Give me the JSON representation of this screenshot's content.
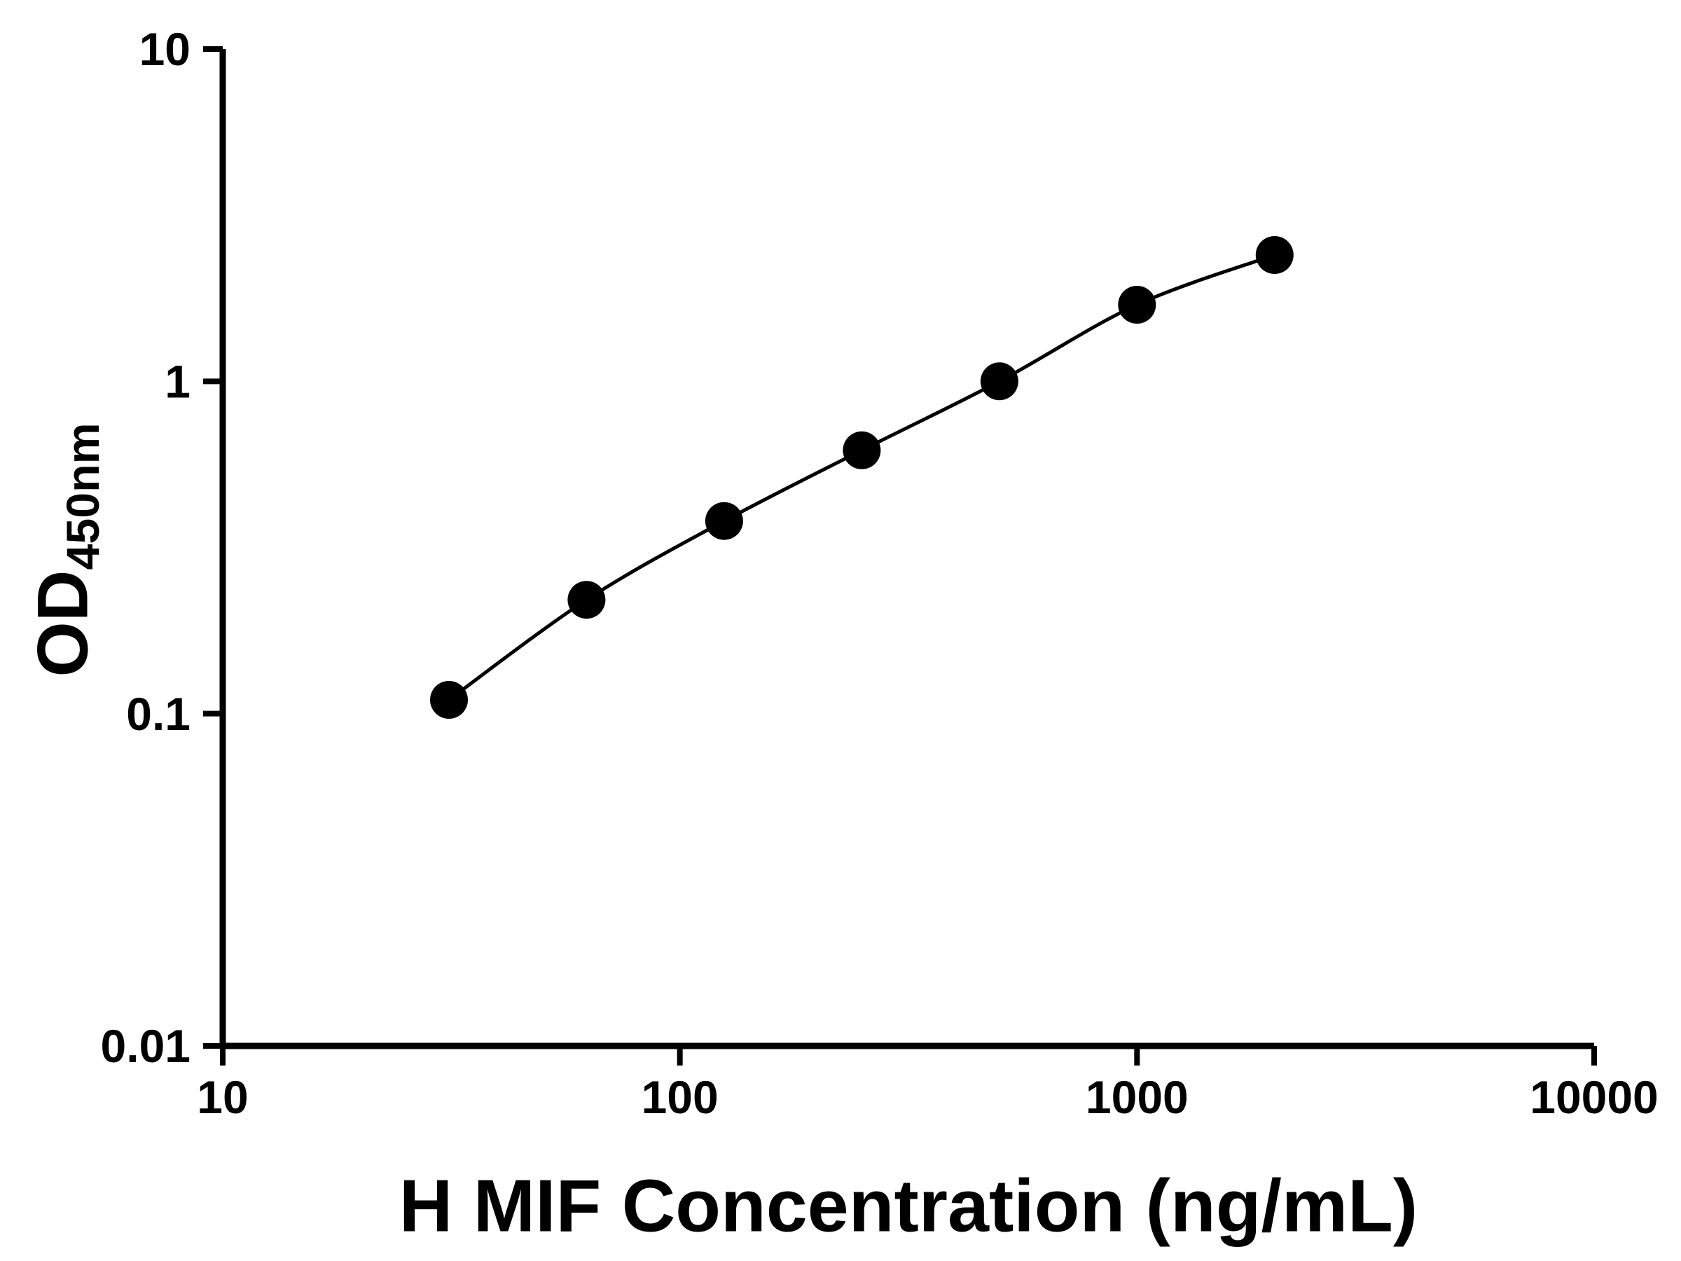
{
  "figure": {
    "background": "#ffffff"
  },
  "chart_data": {
    "type": "scatter",
    "series_name": "H MIF standard curve",
    "x_scale": "log",
    "y_scale": "log",
    "x": [
      31.25,
      62.5,
      125,
      250,
      500,
      1000,
      2000
    ],
    "y": [
      0.11,
      0.22,
      0.38,
      0.62,
      1.0,
      1.7,
      2.4
    ],
    "xlabel": "H MIF Concentration (ng/mL)",
    "ylabel_main": "OD",
    "ylabel_sub": "450nm",
    "xlim": [
      10,
      10000
    ],
    "ylim": [
      0.01,
      10
    ],
    "x_ticks": [
      {
        "value": 10,
        "label": "10"
      },
      {
        "value": 100,
        "label": "100"
      },
      {
        "value": 1000,
        "label": "1000"
      },
      {
        "value": 10000,
        "label": "10000"
      }
    ],
    "y_ticks": [
      {
        "value": 10,
        "label": "10"
      },
      {
        "value": 1,
        "label": "1"
      },
      {
        "value": 0.1,
        "label": "0.1"
      },
      {
        "value": 0.01,
        "label": "0.01"
      }
    ],
    "grid": false,
    "legend": false,
    "marker": "circle",
    "marker_color": "#000000",
    "line_color": "#000000",
    "axis_color": "#000000",
    "background": "#ffffff"
  }
}
